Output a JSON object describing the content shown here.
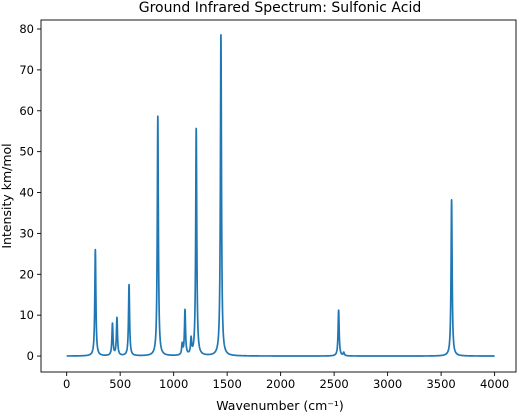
{
  "chart_data": {
    "type": "line",
    "title": "Ground Infrared Spectrum: Sulfonic Acid",
    "xlabel": "Wavenumber (cm⁻¹)",
    "ylabel": "Intensity km/mol",
    "xlim": [
      -240,
      4200
    ],
    "ylim": [
      -3.9,
      82.2
    ],
    "xticks": [
      0,
      500,
      1000,
      1500,
      2000,
      2500,
      3000,
      3500,
      4000
    ],
    "yticks": [
      0,
      10,
      20,
      30,
      40,
      50,
      60,
      70,
      80
    ],
    "grid": false,
    "legend": "none",
    "line_color": "#1f77b4",
    "x_range": [
      0,
      4000
    ],
    "line_shape": "lorentzian",
    "peak_half_width": 6,
    "peaks": [
      {
        "x": 268,
        "y": 26.0
      },
      {
        "x": 428,
        "y": 7.8
      },
      {
        "x": 470,
        "y": 9.2
      },
      {
        "x": 583,
        "y": 17.4
      },
      {
        "x": 852,
        "y": 58.6
      },
      {
        "x": 1080,
        "y": 2.6
      },
      {
        "x": 1106,
        "y": 11.0
      },
      {
        "x": 1163,
        "y": 3.8
      },
      {
        "x": 1211,
        "y": 55.5
      },
      {
        "x": 1442,
        "y": 78.5
      },
      {
        "x": 2542,
        "y": 11.2
      },
      {
        "x": 2590,
        "y": 0.8
      },
      {
        "x": 3598,
        "y": 38.2
      }
    ]
  }
}
